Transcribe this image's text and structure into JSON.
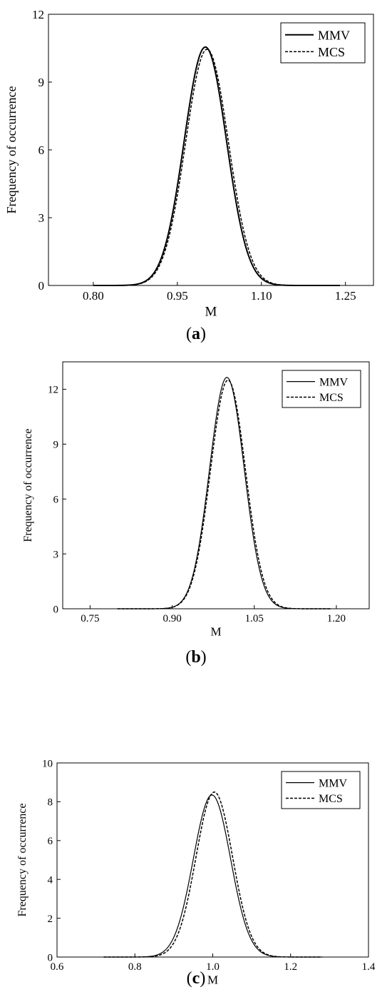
{
  "chart_data": [
    {
      "type": "line",
      "panel_label": "a",
      "xlabel": "M",
      "ylabel": "Frequency of occurrence",
      "xlim": [
        0.72,
        1.3
      ],
      "ylim": [
        0,
        12
      ],
      "xticks": [
        0.8,
        0.95,
        1.1,
        1.25
      ],
      "xtick_labels": [
        "0.80",
        "0.95",
        "1.10",
        "1.25"
      ],
      "yticks": [
        0,
        3,
        6,
        9,
        12
      ],
      "ytick_labels": [
        "0",
        "3",
        "6",
        "9",
        "12"
      ],
      "legend_position": "top-right",
      "grid": false,
      "series": [
        {
          "name": "MMV",
          "style": "solid",
          "width": 2,
          "peak_x": 1.0,
          "peak_y": 10.55,
          "sd": 0.0378,
          "x_start": 0.8,
          "x_end": 1.24
        },
        {
          "name": "MCS",
          "style": "dashed",
          "width": 1.5,
          "peak_x": 1.003,
          "peak_y": 10.45,
          "sd": 0.0382,
          "x_start": 0.8,
          "x_end": 1.24
        }
      ]
    },
    {
      "type": "line",
      "panel_label": "b",
      "xlabel": "M",
      "ylabel": "Frequency of occurrence",
      "xlim": [
        0.7,
        1.26
      ],
      "ylim": [
        0,
        13.5
      ],
      "xticks": [
        0.75,
        0.9,
        1.05,
        1.2
      ],
      "xtick_labels": [
        "0.75",
        "0.90",
        "1.05",
        "1.20"
      ],
      "yticks": [
        0,
        3,
        6,
        9,
        12
      ],
      "ytick_labels": [
        "0",
        "3",
        "6",
        "9",
        "12"
      ],
      "legend_position": "top-right",
      "grid": false,
      "series": [
        {
          "name": "MMV",
          "style": "solid",
          "width": 1.2,
          "peak_x": 1.0,
          "peak_y": 12.65,
          "sd": 0.0316,
          "x_start": 0.8,
          "x_end": 1.19
        },
        {
          "name": "MCS",
          "style": "dashed",
          "width": 1.5,
          "peak_x": 1.002,
          "peak_y": 12.5,
          "sd": 0.032,
          "x_start": 0.8,
          "x_end": 1.19
        }
      ]
    },
    {
      "type": "line",
      "panel_label": "c",
      "xlabel": "M",
      "ylabel": "Frequency of occurrence",
      "xlim": [
        0.6,
        1.4
      ],
      "ylim": [
        0,
        10
      ],
      "xticks": [
        0.6,
        0.8,
        1.0,
        1.2,
        1.4
      ],
      "xtick_labels": [
        "0.6",
        "0.8",
        "1.0",
        "1.2",
        "1.4"
      ],
      "yticks": [
        0,
        2,
        4,
        6,
        8,
        10
      ],
      "ytick_labels": [
        "0",
        "2",
        "4",
        "6",
        "8",
        "10"
      ],
      "legend_position": "top-right",
      "grid": false,
      "series": [
        {
          "name": "MMV",
          "style": "solid",
          "width": 1.2,
          "peak_x": 0.998,
          "peak_y": 8.35,
          "sd": 0.0478,
          "x_start": 0.72,
          "x_end": 1.28
        },
        {
          "name": "MCS",
          "style": "dashed",
          "width": 1.5,
          "peak_x": 1.004,
          "peak_y": 8.5,
          "sd": 0.047,
          "x_start": 0.72,
          "x_end": 1.28
        }
      ]
    }
  ]
}
